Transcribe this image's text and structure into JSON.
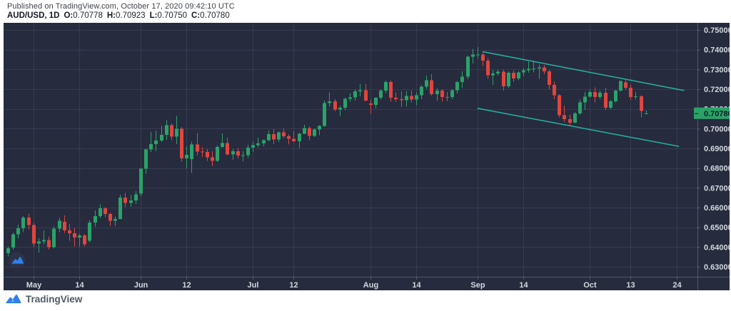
{
  "header": {
    "published_line": "Published on TradingView.com, October 17, 2020 09:42:10 UTC",
    "symbol": "AUD/USD, 1D",
    "ohlc": [
      {
        "label": "O:",
        "value": "0.70778"
      },
      {
        "label": "H:",
        "value": "0.70923"
      },
      {
        "label": "L:",
        "value": "0.70750"
      },
      {
        "label": "C:",
        "value": "0.70780"
      }
    ]
  },
  "footer": {
    "brand": "TradingView"
  },
  "colors": {
    "chart_bg": "#262b3e",
    "grid": "rgba(199,206,232,0.10)",
    "axis_line": "rgba(199,206,232,0.28)",
    "axis_text": "#d5d8de",
    "candle_up": "#2aa368",
    "candle_down": "#e0463e",
    "trendline": "#28ab9c",
    "price_badge_bg": "#2aa368",
    "price_badge_text": "#141a2b",
    "watermark_circle": "#2d3348",
    "brand_blue": "#2f80ed"
  },
  "chart_data": {
    "type": "candlestick",
    "symbol": "AUD/USD",
    "interval": "1D",
    "title": "AUD/USD, 1D",
    "grid": true,
    "ylim": [
      0.63,
      0.75
    ],
    "price_ticks": [
      "0.75000",
      "0.74000",
      "0.73000",
      "0.72000",
      "0.71000",
      "0.70000",
      "0.69000",
      "0.68000",
      "0.67000",
      "0.66000",
      "0.65000",
      "0.64000",
      "0.63000"
    ],
    "time_ticks": [
      {
        "label": "May",
        "index": 5
      },
      {
        "label": "14",
        "index": 14
      },
      {
        "label": "Jun",
        "index": 26
      },
      {
        "label": "12",
        "index": 35
      },
      {
        "label": "Jul",
        "index": 48
      },
      {
        "label": "12",
        "index": 56
      },
      {
        "label": "Aug",
        "index": 71
      },
      {
        "label": "14",
        "index": 80
      },
      {
        "label": "Sep",
        "index": 92
      },
      {
        "label": "14",
        "index": 101
      },
      {
        "label": "Oct",
        "index": 114
      },
      {
        "label": "13",
        "index": 122
      },
      {
        "label": "24",
        "index": 131
      }
    ],
    "last_price": 0.7078,
    "last_price_label": "0.70780",
    "trendlines": [
      {
        "name": "channel-upper",
        "from": [
          93,
          0.739
        ],
        "to": [
          132.5,
          0.7193
        ]
      },
      {
        "name": "channel-lower",
        "from": [
          92,
          0.7103
        ],
        "to": [
          131.5,
          0.691
        ]
      }
    ],
    "candle_format": [
      "date",
      "open",
      "high",
      "low",
      "close"
    ],
    "candles": [
      [
        "Apr 24",
        0.6368,
        0.6403,
        0.6352,
        0.6394
      ],
      [
        "Apr 27",
        0.6398,
        0.6471,
        0.6386,
        0.6464
      ],
      [
        "Apr 28",
        0.6464,
        0.6513,
        0.6443,
        0.6496
      ],
      [
        "Apr 29",
        0.6496,
        0.6557,
        0.6475,
        0.6549
      ],
      [
        "Apr 30",
        0.6549,
        0.657,
        0.649,
        0.6512
      ],
      [
        "May 1",
        0.6512,
        0.652,
        0.6402,
        0.6417
      ],
      [
        "May 4",
        0.6417,
        0.6444,
        0.6372,
        0.6428
      ],
      [
        "May 5",
        0.6428,
        0.6484,
        0.6414,
        0.6436
      ],
      [
        "May 6",
        0.6436,
        0.6453,
        0.6389,
        0.64
      ],
      [
        "May 7",
        0.64,
        0.6504,
        0.6393,
        0.6493
      ],
      [
        "May 8",
        0.6493,
        0.6547,
        0.6475,
        0.6533
      ],
      [
        "May 11",
        0.6527,
        0.656,
        0.6472,
        0.6484
      ],
      [
        "May 12",
        0.6484,
        0.6516,
        0.6432,
        0.647
      ],
      [
        "May 13",
        0.647,
        0.6497,
        0.6403,
        0.6449
      ],
      [
        "May 14",
        0.6449,
        0.6468,
        0.6402,
        0.6459
      ],
      [
        "May 15",
        0.6459,
        0.6466,
        0.6403,
        0.6414
      ],
      [
        "May 18",
        0.6432,
        0.6536,
        0.6425,
        0.6525
      ],
      [
        "May 19",
        0.6525,
        0.6585,
        0.6505,
        0.6556
      ],
      [
        "May 20",
        0.6556,
        0.6617,
        0.6546,
        0.6597
      ],
      [
        "May 21",
        0.6597,
        0.6602,
        0.6552,
        0.6567
      ],
      [
        "May 22",
        0.6567,
        0.6575,
        0.6507,
        0.6534
      ],
      [
        "May 25",
        0.6534,
        0.6555,
        0.6508,
        0.6543
      ],
      [
        "May 26",
        0.6543,
        0.6665,
        0.6541,
        0.665
      ],
      [
        "May 27",
        0.665,
        0.6675,
        0.6601,
        0.6624
      ],
      [
        "May 28",
        0.6624,
        0.6664,
        0.6603,
        0.6637
      ],
      [
        "May 29",
        0.6637,
        0.6683,
        0.6618,
        0.6667
      ],
      [
        "Jun 1",
        0.667,
        0.6803,
        0.6658,
        0.6797
      ],
      [
        "Jun 2",
        0.6797,
        0.6899,
        0.6771,
        0.6894
      ],
      [
        "Jun 3",
        0.6894,
        0.6983,
        0.6882,
        0.6921
      ],
      [
        "Jun 4",
        0.6921,
        0.6988,
        0.6885,
        0.694
      ],
      [
        "Jun 5",
        0.694,
        0.7013,
        0.6932,
        0.6968
      ],
      [
        "Jun 8",
        0.6968,
        0.7043,
        0.6943,
        0.7018
      ],
      [
        "Jun 9",
        0.7018,
        0.7027,
        0.6941,
        0.6959
      ],
      [
        "Jun 10",
        0.6959,
        0.7064,
        0.6922,
        0.6999
      ],
      [
        "Jun 11",
        0.6999,
        0.7008,
        0.6833,
        0.6849
      ],
      [
        "Jun 12",
        0.6849,
        0.691,
        0.6799,
        0.6867
      ],
      [
        "Jun 15",
        0.6845,
        0.6935,
        0.6776,
        0.692
      ],
      [
        "Jun 16",
        0.692,
        0.6977,
        0.6863,
        0.6884
      ],
      [
        "Jun 17",
        0.6884,
        0.6906,
        0.6856,
        0.6882
      ],
      [
        "Jun 18",
        0.6882,
        0.6896,
        0.6837,
        0.6854
      ],
      [
        "Jun 19",
        0.6854,
        0.6885,
        0.681,
        0.6837
      ],
      [
        "Jun 22",
        0.6837,
        0.6915,
        0.6832,
        0.6907
      ],
      [
        "Jun 23",
        0.6907,
        0.6976,
        0.6903,
        0.6927
      ],
      [
        "Jun 24",
        0.6927,
        0.6954,
        0.6866,
        0.687
      ],
      [
        "Jun 25",
        0.687,
        0.6897,
        0.6842,
        0.6886
      ],
      [
        "Jun 26",
        0.6886,
        0.6901,
        0.685,
        0.6863
      ],
      [
        "Jun 29",
        0.6863,
        0.6886,
        0.6833,
        0.6866
      ],
      [
        "Jun 30",
        0.6866,
        0.6918,
        0.6851,
        0.6903
      ],
      [
        "Jul 1",
        0.6903,
        0.6935,
        0.6882,
        0.6917
      ],
      [
        "Jul 2",
        0.6917,
        0.6954,
        0.6906,
        0.6925
      ],
      [
        "Jul 3",
        0.6925,
        0.6946,
        0.6911,
        0.6942
      ],
      [
        "Jul 6",
        0.6942,
        0.699,
        0.6936,
        0.6973
      ],
      [
        "Jul 7",
        0.6973,
        0.6998,
        0.6922,
        0.6946
      ],
      [
        "Jul 8",
        0.6946,
        0.6987,
        0.6932,
        0.6982
      ],
      [
        "Jul 9",
        0.6982,
        0.7001,
        0.6952,
        0.6961
      ],
      [
        "Jul 10",
        0.6961,
        0.6971,
        0.692,
        0.6948
      ],
      [
        "Jul 13",
        0.6948,
        0.6988,
        0.693,
        0.6937
      ],
      [
        "Jul 14",
        0.6937,
        0.6979,
        0.6901,
        0.6974
      ],
      [
        "Jul 15",
        0.6974,
        0.7019,
        0.6972,
        0.7003
      ],
      [
        "Jul 16",
        0.7003,
        0.7011,
        0.694,
        0.6963
      ],
      [
        "Jul 17",
        0.6963,
        0.7001,
        0.6958,
        0.6996
      ],
      [
        "Jul 20",
        0.6996,
        0.7018,
        0.6967,
        0.7013
      ],
      [
        "Jul 21",
        0.7013,
        0.7143,
        0.7009,
        0.713
      ],
      [
        "Jul 22",
        0.713,
        0.7183,
        0.7111,
        0.7139
      ],
      [
        "Jul 23",
        0.7139,
        0.7149,
        0.7088,
        0.7097
      ],
      [
        "Jul 24",
        0.7097,
        0.7115,
        0.7063,
        0.7106
      ],
      [
        "Jul 27",
        0.7106,
        0.7156,
        0.7093,
        0.7152
      ],
      [
        "Jul 28",
        0.7152,
        0.718,
        0.7135,
        0.7158
      ],
      [
        "Jul 29",
        0.7158,
        0.7198,
        0.7142,
        0.719
      ],
      [
        "Jul 30",
        0.719,
        0.7228,
        0.7163,
        0.7195
      ],
      [
        "Jul 31",
        0.7195,
        0.7226,
        0.7138,
        0.7143
      ],
      [
        "Aug 3",
        0.7128,
        0.7148,
        0.7076,
        0.7121
      ],
      [
        "Aug 4",
        0.7121,
        0.7158,
        0.7102,
        0.7157
      ],
      [
        "Aug 5",
        0.7157,
        0.7199,
        0.7147,
        0.7193
      ],
      [
        "Aug 6",
        0.7193,
        0.7243,
        0.7181,
        0.7237
      ],
      [
        "Aug 7",
        0.7237,
        0.7243,
        0.7136,
        0.7157
      ],
      [
        "Aug 10",
        0.7157,
        0.7184,
        0.7135,
        0.7149
      ],
      [
        "Aug 11",
        0.7149,
        0.719,
        0.7109,
        0.7144
      ],
      [
        "Aug 12",
        0.7144,
        0.7191,
        0.7111,
        0.7165
      ],
      [
        "Aug 13",
        0.7165,
        0.7192,
        0.7133,
        0.7147
      ],
      [
        "Aug 14",
        0.7147,
        0.7183,
        0.7119,
        0.717
      ],
      [
        "Aug 17",
        0.717,
        0.722,
        0.715,
        0.7213
      ],
      [
        "Aug 18",
        0.7213,
        0.7269,
        0.7202,
        0.7245
      ],
      [
        "Aug 19",
        0.7245,
        0.7276,
        0.7167,
        0.7175
      ],
      [
        "Aug 20",
        0.7175,
        0.7205,
        0.714,
        0.7193
      ],
      [
        "Aug 21",
        0.7193,
        0.72,
        0.7137,
        0.7161
      ],
      [
        "Aug 24",
        0.7161,
        0.7185,
        0.7138,
        0.716
      ],
      [
        "Aug 25",
        0.716,
        0.7198,
        0.715,
        0.7194
      ],
      [
        "Aug 26",
        0.7194,
        0.7241,
        0.7179,
        0.7236
      ],
      [
        "Aug 27",
        0.7236,
        0.7291,
        0.7207,
        0.7264
      ],
      [
        "Aug 28",
        0.7264,
        0.7369,
        0.725,
        0.7365
      ],
      [
        "Aug 31",
        0.7365,
        0.7404,
        0.7331,
        0.7376
      ],
      [
        "Sep 1",
        0.7376,
        0.7414,
        0.7358,
        0.7376
      ],
      [
        "Sep 2",
        0.7376,
        0.7385,
        0.7317,
        0.7344
      ],
      [
        "Sep 3",
        0.7344,
        0.7359,
        0.7252,
        0.727
      ],
      [
        "Sep 4",
        0.727,
        0.7296,
        0.7222,
        0.728
      ],
      [
        "Sep 7",
        0.728,
        0.73,
        0.7268,
        0.7288
      ],
      [
        "Sep 8",
        0.7288,
        0.7299,
        0.7192,
        0.7215
      ],
      [
        "Sep 9",
        0.7215,
        0.729,
        0.7208,
        0.7283
      ],
      [
        "Sep 10",
        0.7283,
        0.7296,
        0.7238,
        0.7255
      ],
      [
        "Sep 11",
        0.7255,
        0.7291,
        0.7245,
        0.7285
      ],
      [
        "Sep 14",
        0.7285,
        0.7306,
        0.7266,
        0.7296
      ],
      [
        "Sep 15",
        0.7296,
        0.7339,
        0.7283,
        0.7303
      ],
      [
        "Sep 16",
        0.7303,
        0.7345,
        0.7285,
        0.7305
      ],
      [
        "Sep 17",
        0.7305,
        0.7325,
        0.7252,
        0.731
      ],
      [
        "Sep 18",
        0.731,
        0.7321,
        0.7276,
        0.729
      ],
      [
        "Sep 21",
        0.729,
        0.7297,
        0.72,
        0.7221
      ],
      [
        "Sep 22",
        0.7221,
        0.724,
        0.715,
        0.717
      ],
      [
        "Sep 23",
        0.717,
        0.7175,
        0.7057,
        0.7068
      ],
      [
        "Sep 24",
        0.7068,
        0.7117,
        0.7033,
        0.7049
      ],
      [
        "Sep 25",
        0.7049,
        0.7071,
        0.7016,
        0.7031
      ],
      [
        "Sep 28",
        0.7031,
        0.7085,
        0.7028,
        0.7078
      ],
      [
        "Sep 29",
        0.7078,
        0.7147,
        0.707,
        0.7133
      ],
      [
        "Sep 30",
        0.7133,
        0.7185,
        0.7095,
        0.7162
      ],
      [
        "Oct 1",
        0.7162,
        0.7198,
        0.7157,
        0.7186
      ],
      [
        "Oct 2",
        0.7186,
        0.7209,
        0.7133,
        0.716
      ],
      [
        "Oct 5",
        0.716,
        0.7192,
        0.7148,
        0.7182
      ],
      [
        "Oct 6",
        0.7182,
        0.7208,
        0.7096,
        0.7106
      ],
      [
        "Oct 7",
        0.7106,
        0.7145,
        0.7098,
        0.7139
      ],
      [
        "Oct 8",
        0.7139,
        0.7197,
        0.7132,
        0.7193
      ],
      [
        "Oct 9",
        0.7193,
        0.7243,
        0.7187,
        0.7241
      ],
      [
        "Oct 12",
        0.7235,
        0.7246,
        0.7197,
        0.7208
      ],
      [
        "Oct 13",
        0.7208,
        0.7223,
        0.7146,
        0.716
      ],
      [
        "Oct 14",
        0.716,
        0.7185,
        0.7148,
        0.7164
      ],
      [
        "Oct 15",
        0.7164,
        0.7169,
        0.7057,
        0.709
      ],
      [
        "Oct 16",
        0.70778,
        0.70923,
        0.7075,
        0.7078
      ]
    ]
  }
}
